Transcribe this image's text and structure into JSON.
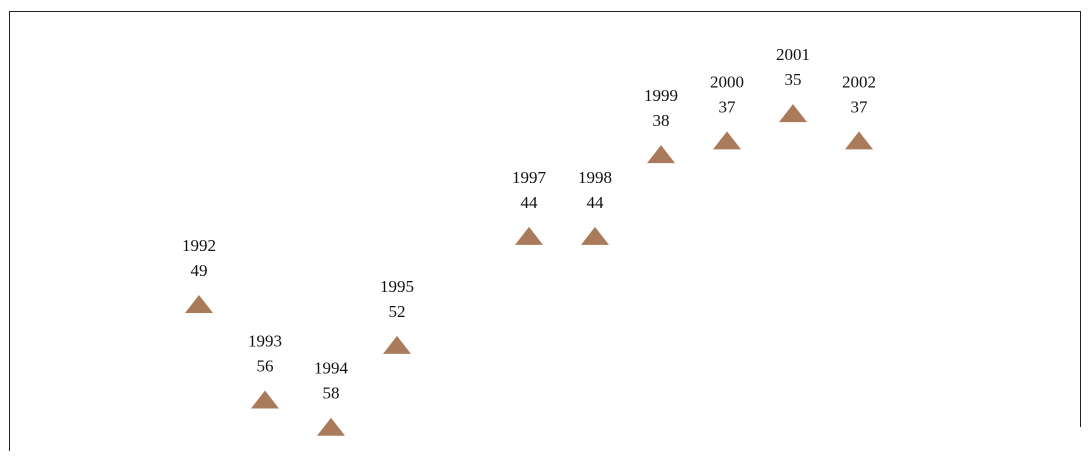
{
  "chart_data": {
    "type": "scatter",
    "x": [
      1992,
      1993,
      1994,
      1995,
      1997,
      1998,
      1999,
      2000,
      2001,
      2002
    ],
    "values": [
      49,
      56,
      58,
      52,
      44,
      44,
      38,
      37,
      35,
      37
    ],
    "color": "#a97b5b",
    "marker": "triangle",
    "xlim": [
      1989,
      2005
    ],
    "ylim": [
      30,
      60
    ],
    "y_reversed": true
  }
}
